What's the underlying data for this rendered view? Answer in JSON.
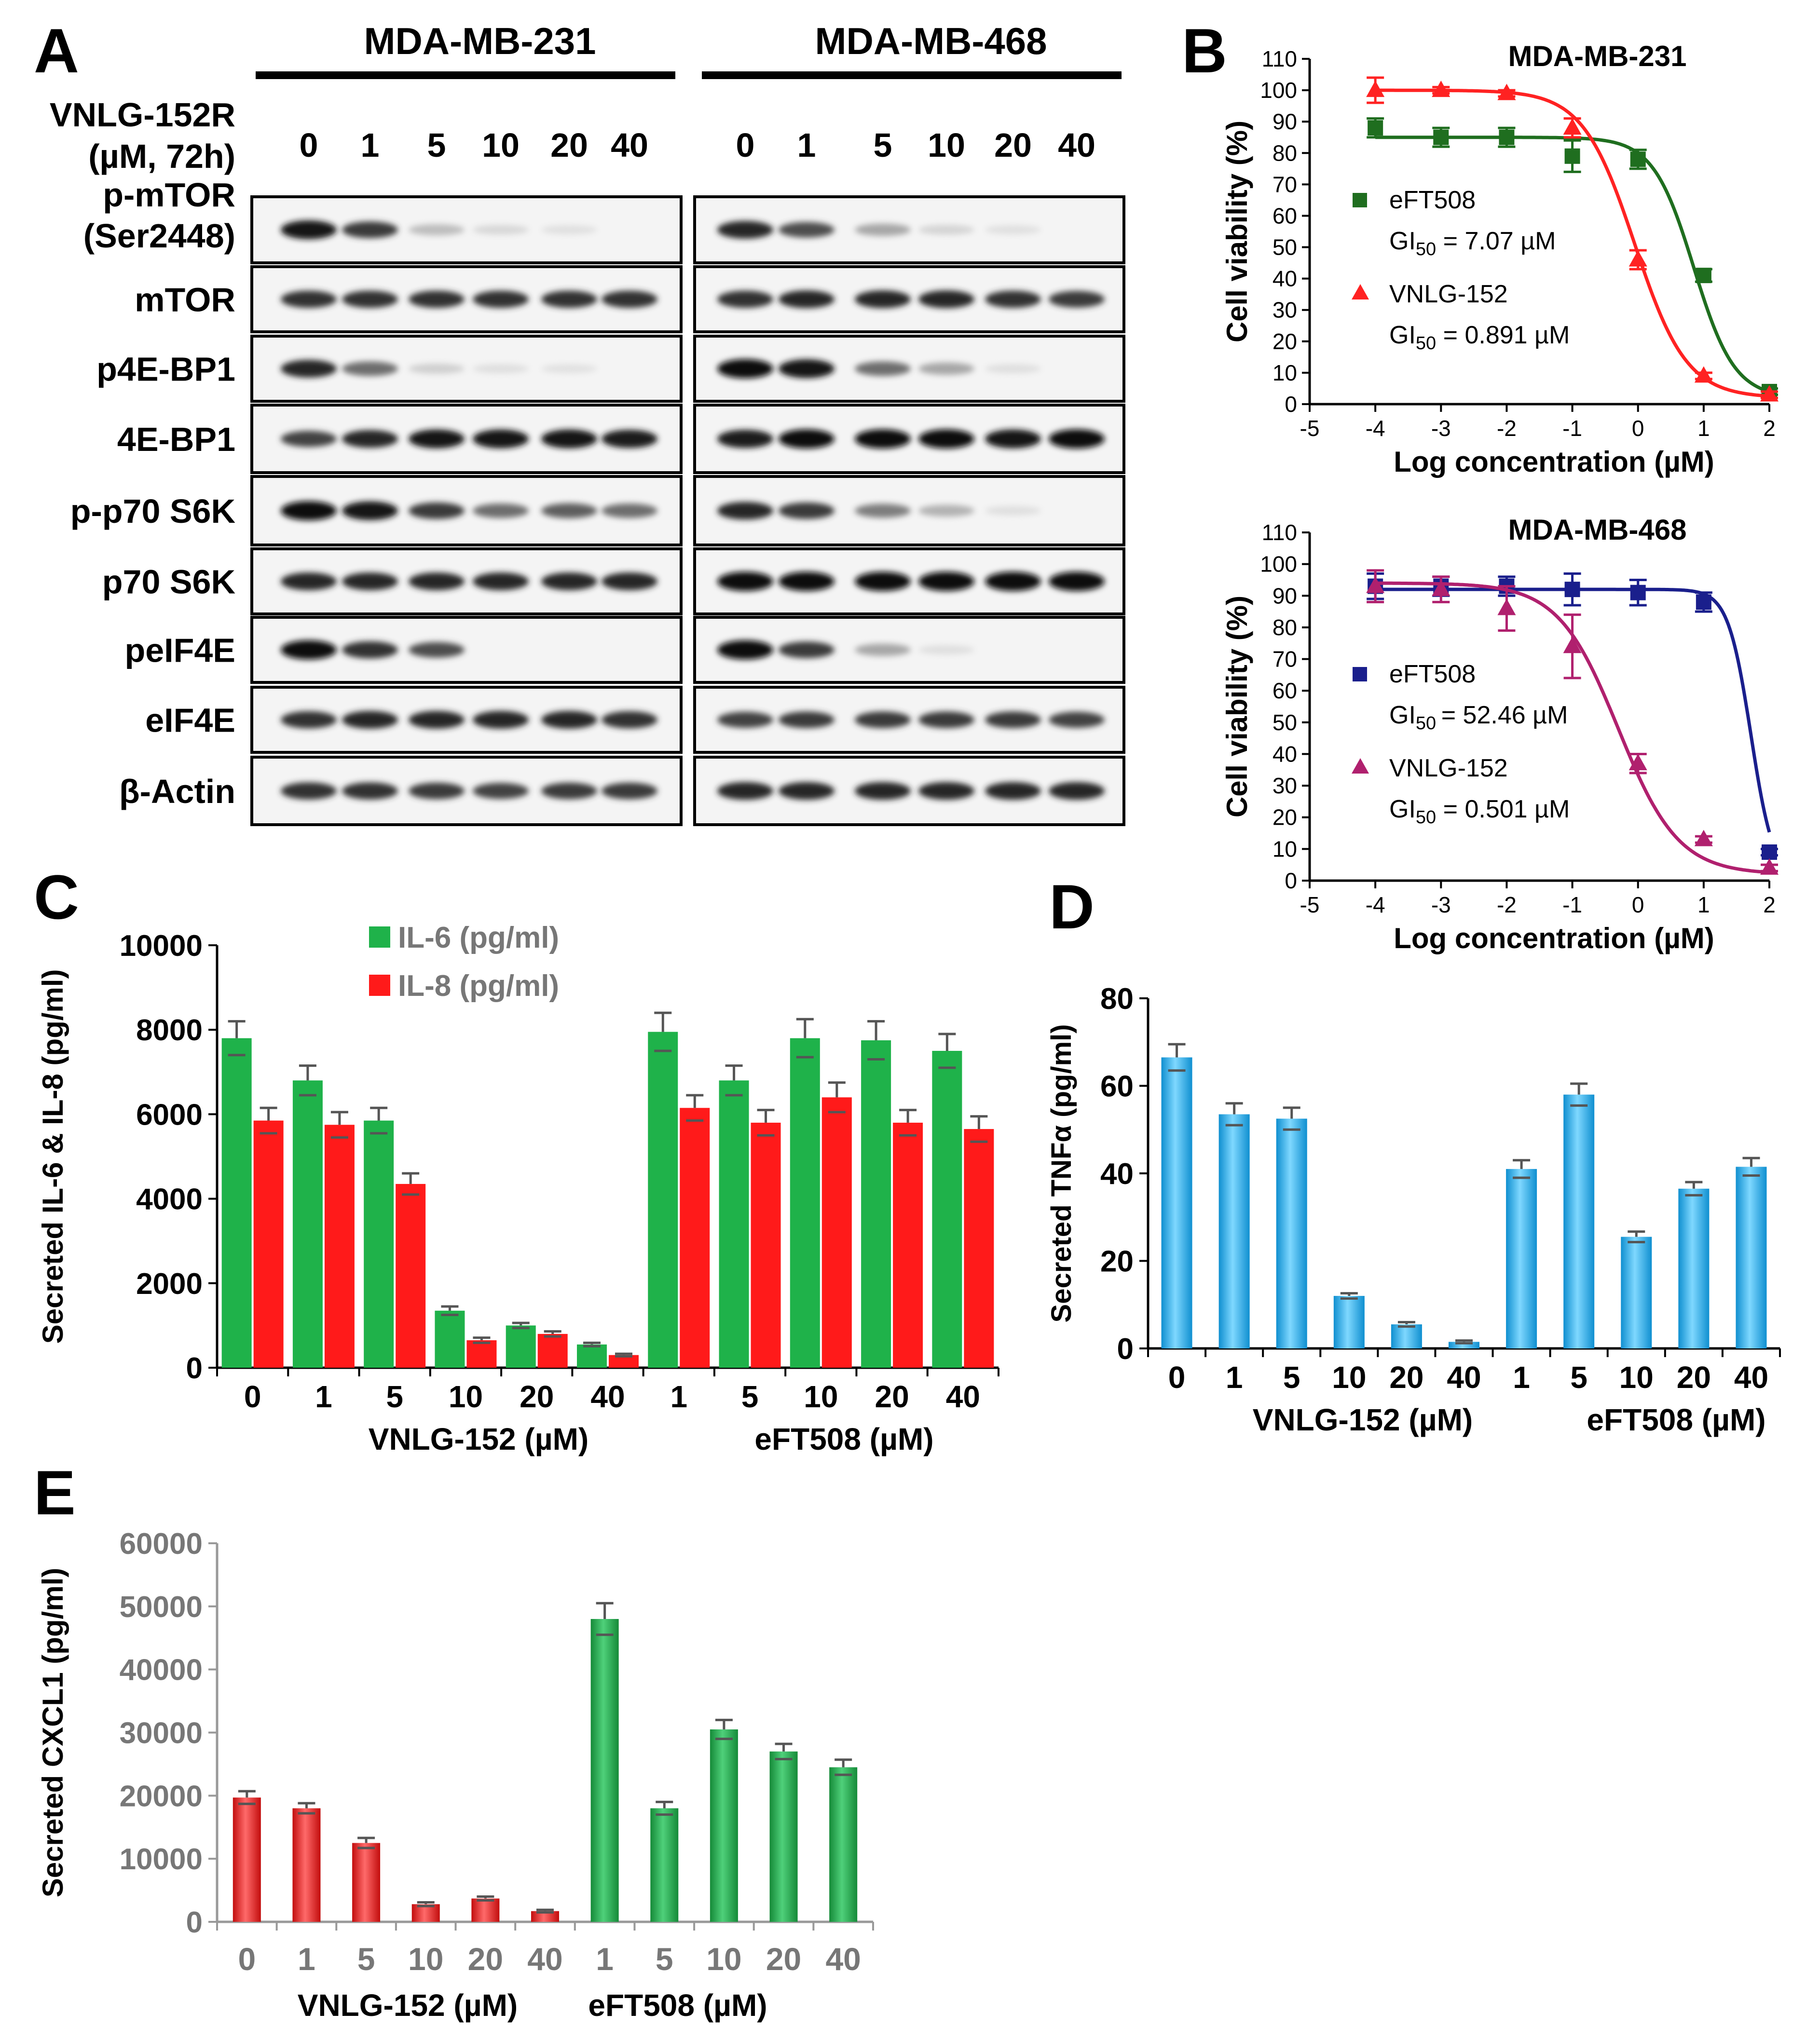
{
  "panel_letters": {
    "A": "A",
    "B": "B",
    "C": "C",
    "D": "D",
    "E": "E"
  },
  "blot": {
    "cell_lines": [
      "MDA-MB-231",
      "MDA-MB-468"
    ],
    "treatment_label_line1": "VNLG-152R",
    "treatment_label_line2": "(µM, 72h)",
    "doses": [
      "0",
      "1",
      "5",
      "10",
      "20",
      "40"
    ],
    "proteins": [
      {
        "label_lines": [
          "p-mTOR",
          "(Ser2448)"
        ],
        "mb231": [
          0.95,
          0.75,
          0.25,
          0.1,
          0.04,
          0.02
        ],
        "mb468": [
          0.85,
          0.65,
          0.35,
          0.12,
          0.04,
          0.02
        ]
      },
      {
        "label_lines": [
          "mTOR"
        ],
        "mb231": [
          0.8,
          0.8,
          0.8,
          0.8,
          0.8,
          0.8
        ],
        "mb468": [
          0.8,
          0.85,
          0.85,
          0.85,
          0.8,
          0.75
        ]
      },
      {
        "label_lines": [
          "p4E-BP1"
        ],
        "mb231": [
          0.85,
          0.55,
          0.15,
          0.05,
          0.03,
          0.02
        ],
        "mb468": [
          1.0,
          0.95,
          0.55,
          0.35,
          0.05,
          0.02
        ]
      },
      {
        "label_lines": [
          "4E-BP1"
        ],
        "mb231": [
          0.7,
          0.85,
          0.95,
          0.95,
          0.95,
          0.9
        ],
        "mb468": [
          0.9,
          1.0,
          1.0,
          1.0,
          0.95,
          1.0
        ]
      },
      {
        "label_lines": [
          "p-p70 S6K"
        ],
        "mb231": [
          1.0,
          0.95,
          0.75,
          0.55,
          0.6,
          0.55
        ],
        "mb468": [
          0.85,
          0.75,
          0.5,
          0.3,
          0.05,
          0.02
        ]
      },
      {
        "label_lines": [
          "p70 S6K"
        ],
        "mb231": [
          0.85,
          0.85,
          0.85,
          0.85,
          0.85,
          0.85
        ],
        "mb468": [
          1.0,
          1.0,
          1.0,
          1.0,
          1.0,
          1.0
        ]
      },
      {
        "label_lines": [
          "peIF4E"
        ],
        "mb231": [
          1.0,
          0.8,
          0.65,
          0.02,
          0.02,
          0.02
        ],
        "mb468": [
          1.0,
          0.75,
          0.35,
          0.05,
          0.02,
          0.02
        ]
      },
      {
        "label_lines": [
          "eIF4E"
        ],
        "mb231": [
          0.8,
          0.85,
          0.85,
          0.85,
          0.85,
          0.8
        ],
        "mb468": [
          0.7,
          0.75,
          0.75,
          0.75,
          0.75,
          0.7
        ]
      },
      {
        "label_lines": [
          "β-Actin"
        ],
        "mb231": [
          0.8,
          0.8,
          0.75,
          0.7,
          0.75,
          0.75
        ],
        "mb468": [
          0.85,
          0.85,
          0.85,
          0.85,
          0.85,
          0.85
        ]
      }
    ]
  },
  "chart_data": [
    {
      "panel": "B-top",
      "type": "line",
      "title": "MDA-MB-231",
      "xlabel": "Log concentration (µM)",
      "ylabel": "Cell viability (%)",
      "xlim": [
        -5,
        2
      ],
      "ylim": [
        0,
        110
      ],
      "xticks": [
        "-5",
        "-4",
        "-3",
        "-2",
        "-1",
        "0",
        "1",
        "2"
      ],
      "yticks": [
        "0",
        "10",
        "20",
        "30",
        "40",
        "50",
        "60",
        "70",
        "80",
        "90",
        "100",
        "110"
      ],
      "series": [
        {
          "name": "eFT508",
          "gi50_prefix": "GI",
          "gi50_sub": "50",
          "gi50_value": " = 7.07 µM",
          "color": "#1f6e1f",
          "marker": "square",
          "x": [
            -4,
            -3,
            -2,
            -1,
            0,
            1,
            2
          ],
          "y": [
            88,
            85,
            85,
            79,
            78,
            41,
            4
          ],
          "err": [
            3,
            3,
            3,
            5,
            3,
            2,
            1
          ],
          "curve": {
            "top": 85,
            "bottom": 2,
            "log_ic50": 0.85,
            "hill": 1.4
          }
        },
        {
          "name": "VNLG-152",
          "gi50_prefix": "GI",
          "gi50_sub": "50",
          "gi50_value": " = 0.891 µM",
          "color": "#ff2222",
          "marker": "triangle",
          "x": [
            -4,
            -3,
            -2,
            -1,
            0,
            1,
            2
          ],
          "y": [
            100,
            100,
            99,
            88,
            46,
            9,
            3
          ],
          "err": [
            4,
            1,
            1,
            3,
            3,
            1,
            1
          ],
          "curve": {
            "top": 100,
            "bottom": 2,
            "log_ic50": -0.05,
            "hill": 1.1
          }
        }
      ]
    },
    {
      "panel": "B-bottom",
      "type": "line",
      "title": "MDA-MB-468",
      "xlabel": "Log concentration (µM)",
      "ylabel": "Cell viability (%)",
      "xlim": [
        -5,
        2
      ],
      "ylim": [
        0,
        110
      ],
      "xticks": [
        "-5",
        "-4",
        "-3",
        "-2",
        "-1",
        "0",
        "1",
        "2"
      ],
      "yticks": [
        "0",
        "10",
        "20",
        "30",
        "40",
        "50",
        "60",
        "70",
        "80",
        "90",
        "100",
        "110"
      ],
      "series": [
        {
          "name": "eFT508",
          "gi50_prefix": "GI",
          "gi50_sub": "50 ",
          "gi50_value": "= 52.46 µM",
          "color": "#1a1f8c",
          "marker": "square",
          "x": [
            -4,
            -3,
            -2,
            -1,
            0,
            1,
            2
          ],
          "y": [
            93,
            93,
            93,
            92,
            91,
            88,
            9
          ],
          "err": [
            4,
            3,
            3,
            5,
            4,
            3,
            1
          ],
          "curve": {
            "top": 92,
            "bottom": 0,
            "log_ic50": 1.72,
            "hill": 2.5
          }
        },
        {
          "name": "VNLG-152",
          "gi50_prefix": "GI",
          "gi50_sub": "50",
          "gi50_value": " = 0.501 µM",
          "color": "#b0206e",
          "marker": "triangle",
          "x": [
            -4,
            -3,
            -2,
            -1,
            0,
            1,
            2
          ],
          "y": [
            93,
            92,
            86,
            74,
            37,
            13,
            4
          ],
          "err": [
            5,
            4,
            7,
            10,
            3,
            1,
            1
          ],
          "curve": {
            "top": 94,
            "bottom": 2,
            "log_ic50": -0.3,
            "hill": 0.95
          }
        }
      ]
    },
    {
      "panel": "C",
      "type": "bar",
      "ylabel": "Secreted IL-6 & IL-8 (pg/ml)",
      "ylim": [
        0,
        10000
      ],
      "yticks": [
        "0",
        "2000",
        "4000",
        "6000",
        "8000",
        "10000"
      ],
      "categories": [
        "0",
        "1",
        "5",
        "10",
        "20",
        "40",
        "1",
        "5",
        "10",
        "20",
        "40"
      ],
      "group_labels": [
        "VNLG-152 (µM)",
        "eFT508 (µM)"
      ],
      "series": [
        {
          "name": "IL-6 (pg/ml)",
          "color": "#1fb24a",
          "values": [
            7800,
            6800,
            5850,
            1350,
            1000,
            550,
            7950,
            6800,
            7800,
            7750,
            7500
          ],
          "err": [
            400,
            350,
            300,
            100,
            60,
            40,
            450,
            350,
            450,
            450,
            400
          ]
        },
        {
          "name": "IL-8 (pg/ml)",
          "color": "#ff1a1a",
          "values": [
            5850,
            5750,
            4350,
            650,
            800,
            300,
            6150,
            5800,
            6400,
            5800,
            5650
          ],
          "err": [
            300,
            300,
            250,
            60,
            60,
            30,
            300,
            300,
            350,
            300,
            300
          ]
        }
      ]
    },
    {
      "panel": "D",
      "type": "bar",
      "ylabel": "Secreted TNFα (pg/ml)",
      "ylim": [
        0,
        80
      ],
      "yticks": [
        "0",
        "20",
        "40",
        "60",
        "80"
      ],
      "categories": [
        "0",
        "1",
        "5",
        "10",
        "20",
        "40",
        "1",
        "5",
        "10",
        "20",
        "40"
      ],
      "group_labels": [
        "VNLG-152 (µM)",
        "eFT508 (µM)"
      ],
      "series": [
        {
          "name": "TNFα",
          "color": "#1aa6e8",
          "values": [
            66.5,
            53.5,
            52.5,
            12,
            5.5,
            1.5,
            41,
            58,
            25.5,
            36.5,
            41.5
          ],
          "err": [
            3,
            2.5,
            2.5,
            0.6,
            0.5,
            0.3,
            2,
            2.5,
            1.2,
            1.5,
            2
          ]
        }
      ]
    },
    {
      "panel": "E",
      "type": "bar",
      "ylabel": "Secreted CXCL1 (pg/ml)",
      "ylim": [
        0,
        60000
      ],
      "yticks": [
        "0",
        "10000",
        "20000",
        "30000",
        "40000",
        "50000",
        "60000"
      ],
      "categories": [
        "0",
        "1",
        "5",
        "10",
        "20",
        "40",
        "1",
        "5",
        "10",
        "20",
        "40"
      ],
      "group_labels": [
        "VNLG-152 (µM)",
        "eFT508 (µM)"
      ],
      "series": [
        {
          "name": "CXCL1",
          "colors": [
            "#ff1a1a",
            "#ff1a1a",
            "#ff1a1a",
            "#ff1a1a",
            "#ff1a1a",
            "#ff1a1a",
            "#1fb24a",
            "#1fb24a",
            "#1fb24a",
            "#1fb24a",
            "#1fb24a"
          ],
          "values": [
            19700,
            18000,
            12500,
            2800,
            3700,
            1700,
            48000,
            18000,
            30500,
            27000,
            24500
          ],
          "err": [
            1000,
            800,
            800,
            300,
            300,
            200,
            2500,
            1000,
            1500,
            1200,
            1200
          ]
        }
      ]
    }
  ]
}
